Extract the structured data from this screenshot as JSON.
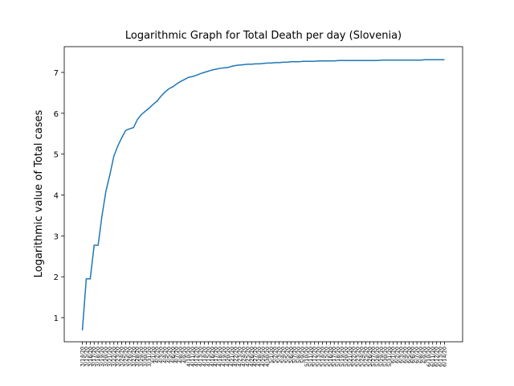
{
  "chart_data": {
    "type": "line",
    "title": "Logarithmic Graph for Total Death per day (Slovenia)",
    "y_label": "Logarithmic value of Total cases",
    "categories": [
      "3/14/20",
      "3/15/20",
      "3/16/20",
      "3/17/20",
      "3/18/20",
      "3/19/20",
      "3/20/20",
      "3/21/20",
      "3/22/20",
      "3/23/20",
      "3/24/20",
      "3/25/20",
      "3/26/20",
      "3/27/20",
      "3/28/20",
      "3/29/20",
      "3/30/20",
      "3/31/20",
      "4/1/20",
      "4/2/20",
      "4/3/20",
      "4/4/20",
      "4/5/20",
      "4/6/20",
      "4/7/20",
      "4/8/20",
      "4/9/20",
      "4/10/20",
      "4/11/20",
      "4/12/20",
      "4/13/20",
      "4/14/20",
      "4/15/20",
      "4/16/20",
      "4/17/20",
      "4/18/20",
      "4/19/20",
      "4/20/20",
      "4/21/20",
      "4/22/20",
      "4/23/20",
      "4/24/20",
      "4/25/20",
      "4/26/20",
      "4/27/20",
      "4/28/20",
      "4/29/20",
      "4/30/20",
      "5/1/20",
      "5/2/20",
      "5/3/20",
      "5/4/20",
      "5/5/20",
      "5/6/20",
      "5/7/20",
      "5/8/20",
      "5/9/20",
      "5/10/20",
      "5/11/20",
      "5/12/20",
      "5/13/20",
      "5/14/20",
      "5/15/20",
      "5/16/20",
      "5/17/20",
      "5/18/20",
      "5/19/20",
      "5/20/20",
      "5/21/20",
      "5/22/20",
      "5/23/20",
      "5/24/20",
      "5/25/20",
      "5/26/20",
      "5/27/20",
      "5/28/20",
      "5/29/20",
      "5/30/20",
      "5/31/20",
      "6/1/20",
      "6/2/20",
      "6/3/20",
      "6/4/20",
      "6/5/20",
      "6/6/20",
      "6/7/20",
      "6/8/20",
      "6/9/20",
      "6/10/20",
      "6/11/20",
      "6/12/20",
      "6/13/20",
      "6/14/20"
    ],
    "series": [
      {
        "color": "#1f77b4",
        "values": [
          0.69,
          1.95,
          1.95,
          2.77,
          2.77,
          3.5,
          4.1,
          4.5,
          4.95,
          5.2,
          5.4,
          5.58,
          5.62,
          5.65,
          5.85,
          5.97,
          6.05,
          6.13,
          6.22,
          6.3,
          6.42,
          6.52,
          6.6,
          6.65,
          6.72,
          6.78,
          6.83,
          6.88,
          6.9,
          6.93,
          6.97,
          7.0,
          7.03,
          7.06,
          7.08,
          7.1,
          7.11,
          7.12,
          7.15,
          7.17,
          7.18,
          7.19,
          7.2,
          7.2,
          7.21,
          7.21,
          7.22,
          7.23,
          7.23,
          7.24,
          7.24,
          7.25,
          7.25,
          7.26,
          7.26,
          7.26,
          7.27,
          7.27,
          7.27,
          7.27,
          7.28,
          7.28,
          7.28,
          7.28,
          7.28,
          7.29,
          7.29,
          7.29,
          7.29,
          7.29,
          7.29,
          7.29,
          7.29,
          7.29,
          7.29,
          7.29,
          7.3,
          7.3,
          7.3,
          7.3,
          7.3,
          7.3,
          7.3,
          7.3,
          7.3,
          7.3,
          7.3,
          7.31,
          7.31,
          7.31,
          7.31,
          7.31,
          7.31
        ]
      }
    ],
    "ylim": [
      0.41,
      7.63
    ],
    "yticks": [
      1,
      2,
      3,
      4,
      5,
      6,
      7
    ],
    "grid": false
  }
}
